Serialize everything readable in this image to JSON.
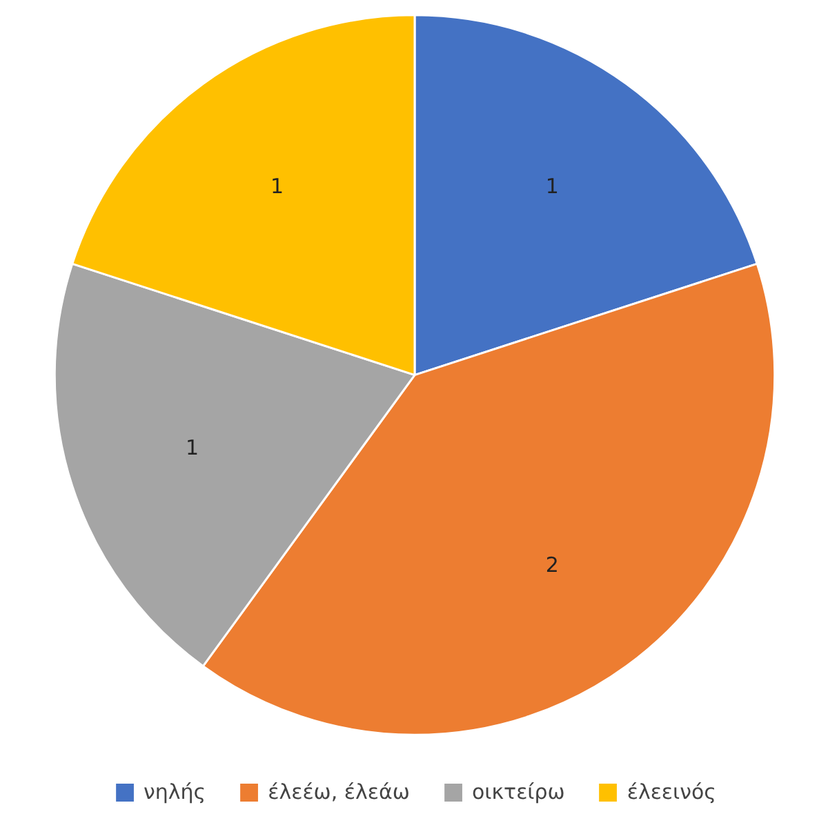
{
  "chart_data": {
    "type": "pie",
    "categories": [
      "νηλής",
      "έλεέω, έλεάω",
      "οικτείρω",
      "έλεεινός"
    ],
    "values": [
      1,
      2,
      1,
      1
    ],
    "colors": [
      "#4472c4",
      "#ed7d31",
      "#a5a5a5",
      "#ffc000"
    ],
    "data_labels": true,
    "legend": "bottom"
  }
}
